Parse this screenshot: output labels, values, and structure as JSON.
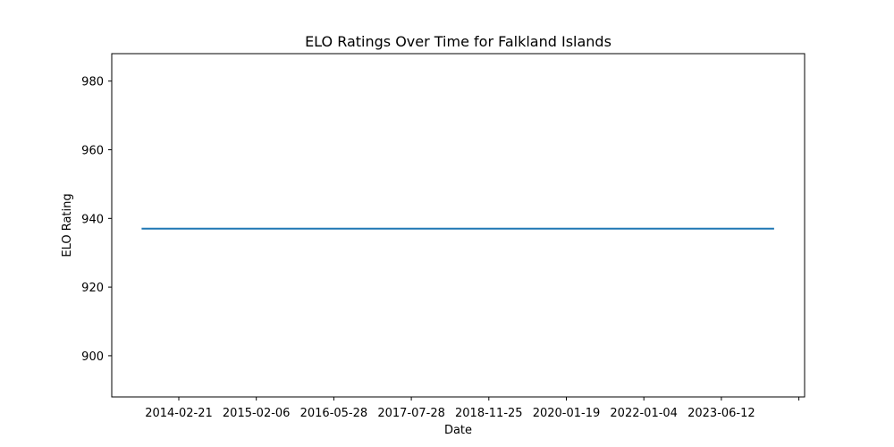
{
  "chart_data": {
    "type": "line",
    "title": "ELO Ratings Over Time for Falkland Islands",
    "xlabel": "Date",
    "ylabel": "ELO Rating",
    "ylim": [
      888,
      988
    ],
    "yticks": [
      900,
      920,
      940,
      960,
      980
    ],
    "xticks": [
      "2014-02-21",
      "2015-02-06",
      "2016-05-28",
      "2017-07-28",
      "2018-11-25",
      "2020-01-19",
      "2022-01-04",
      "2023-06-12",
      ""
    ],
    "grid": false,
    "line_color": "#1f77b4",
    "series": [
      {
        "x_start_index": -0.48,
        "x_end_index": 7.68,
        "values": [
          937,
          937
        ]
      }
    ]
  }
}
